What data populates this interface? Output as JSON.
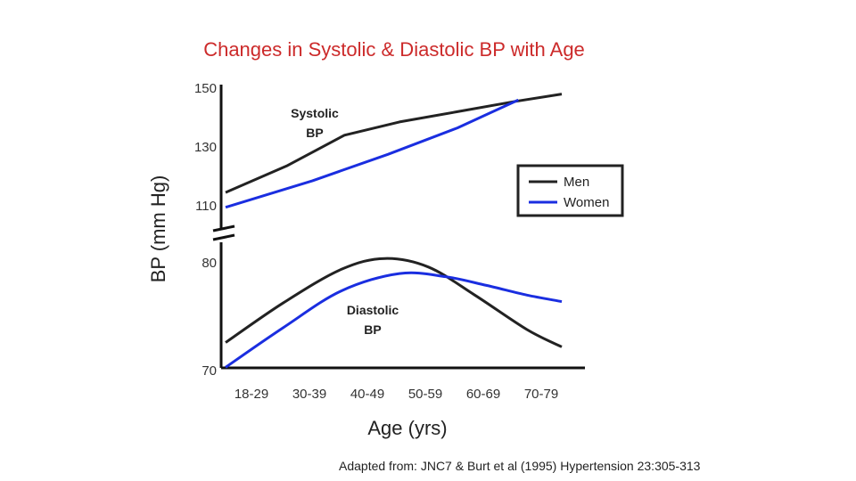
{
  "chart_data": {
    "type": "line",
    "title": "Changes in Systolic & Diastolic BP with Age",
    "xlabel": "Age (yrs)",
    "ylabel": "BP (mm Hg)",
    "categories": [
      "18-29",
      "30-39",
      "40-49",
      "50-59",
      "60-69",
      "70-79"
    ],
    "upper_panel": {
      "annotation": [
        "Systolic",
        "BP"
      ],
      "ylim": [
        105,
        150
      ],
      "yticks": [
        150,
        130,
        110
      ],
      "series": [
        {
          "name": "Men",
          "color": "#222222",
          "x": [
            0,
            1.05,
            2.05,
            3.0,
            4.0,
            5.0,
            5.8
          ],
          "y": [
            114.5,
            123.5,
            134,
            138.5,
            142,
            145.5,
            148
          ]
        },
        {
          "name": "Women",
          "color": "#1a2ee0",
          "x": [
            0,
            1.5,
            2.8,
            4.0,
            5.05
          ],
          "y": [
            109.5,
            118.5,
            127.5,
            136.5,
            146
          ]
        }
      ]
    },
    "lower_panel": {
      "annotation": [
        "Diastolic",
        "BP"
      ],
      "ylim": [
        70,
        82
      ],
      "yticks": [
        80,
        70
      ],
      "series": [
        {
          "name": "Men",
          "color": "#222222",
          "x": [
            0,
            1.0,
            2.0,
            2.75,
            3.5,
            4.3,
            5.2,
            5.8
          ],
          "y": [
            72.6,
            76.3,
            79.4,
            80.4,
            79.6,
            77.0,
            73.8,
            72.2
          ]
        },
        {
          "name": "Women",
          "color": "#1a2ee0",
          "x": [
            0,
            1.0,
            2.0,
            3.0,
            3.8,
            4.5,
            5.2,
            5.8
          ],
          "y": [
            70.3,
            74.0,
            77.4,
            79.0,
            78.7,
            77.9,
            77.0,
            76.4
          ]
        }
      ]
    },
    "legend": {
      "position": "right",
      "entries": [
        "Men",
        "Women"
      ]
    },
    "source": "Adapted from: JNC7 & Burt et al (1995) Hypertension 23:305-313"
  }
}
